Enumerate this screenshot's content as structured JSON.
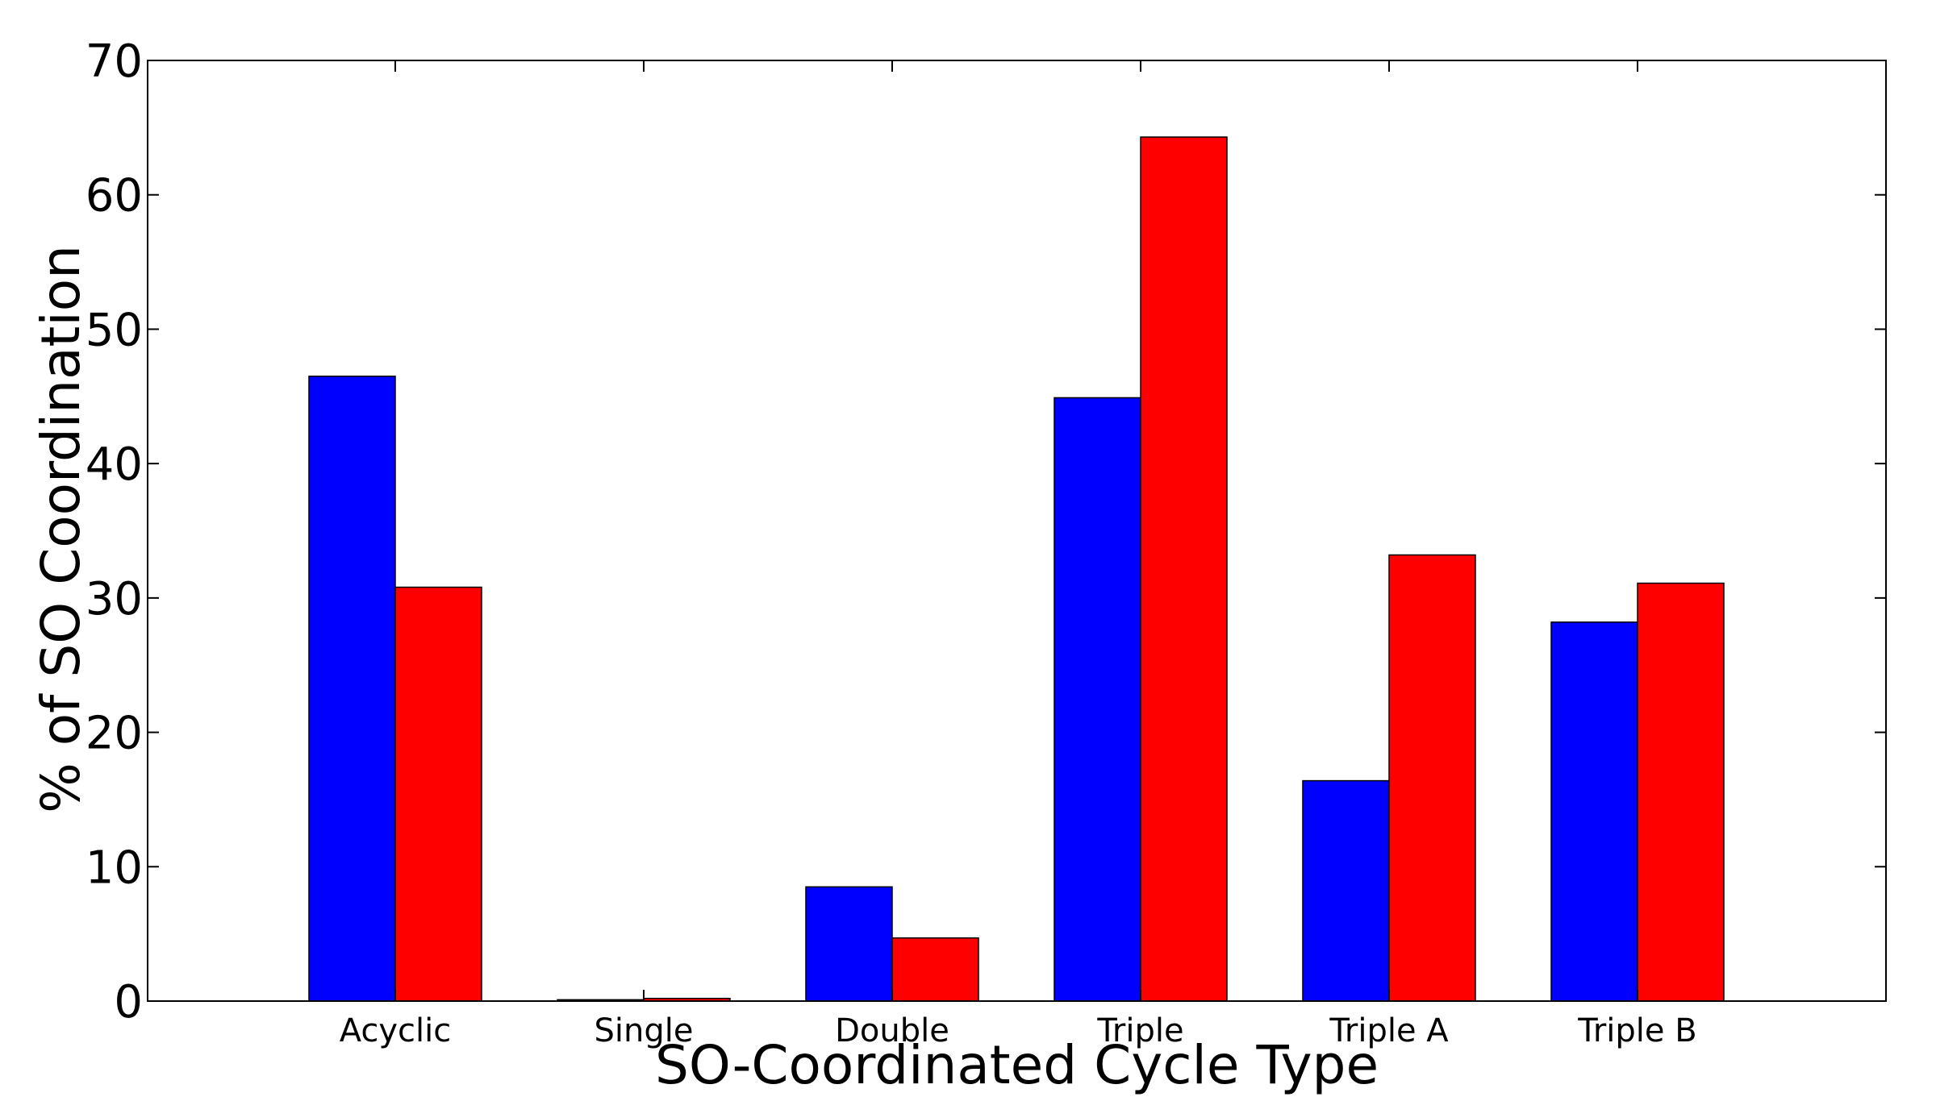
{
  "chart_data": {
    "type": "bar",
    "title": "",
    "xlabel": "SO-Coordinated Cycle Type",
    "ylabel": "% of SO Coordination",
    "categories": [
      "Acyclic",
      "Single",
      "Double",
      "Triple",
      "Triple A",
      "Triple B"
    ],
    "series": [
      {
        "values": [
          46.5,
          0.1,
          8.5,
          44.9,
          16.4,
          28.2
        ],
        "color": "#0000ff"
      },
      {
        "values": [
          30.8,
          0.2,
          4.7,
          64.3,
          33.2,
          31.1
        ],
        "color": "#ff0000"
      }
    ],
    "ylim": [
      0,
      70
    ],
    "yticks": [
      0,
      10,
      20,
      30,
      40,
      50,
      60,
      70
    ],
    "grid": false,
    "legend": "none"
  }
}
